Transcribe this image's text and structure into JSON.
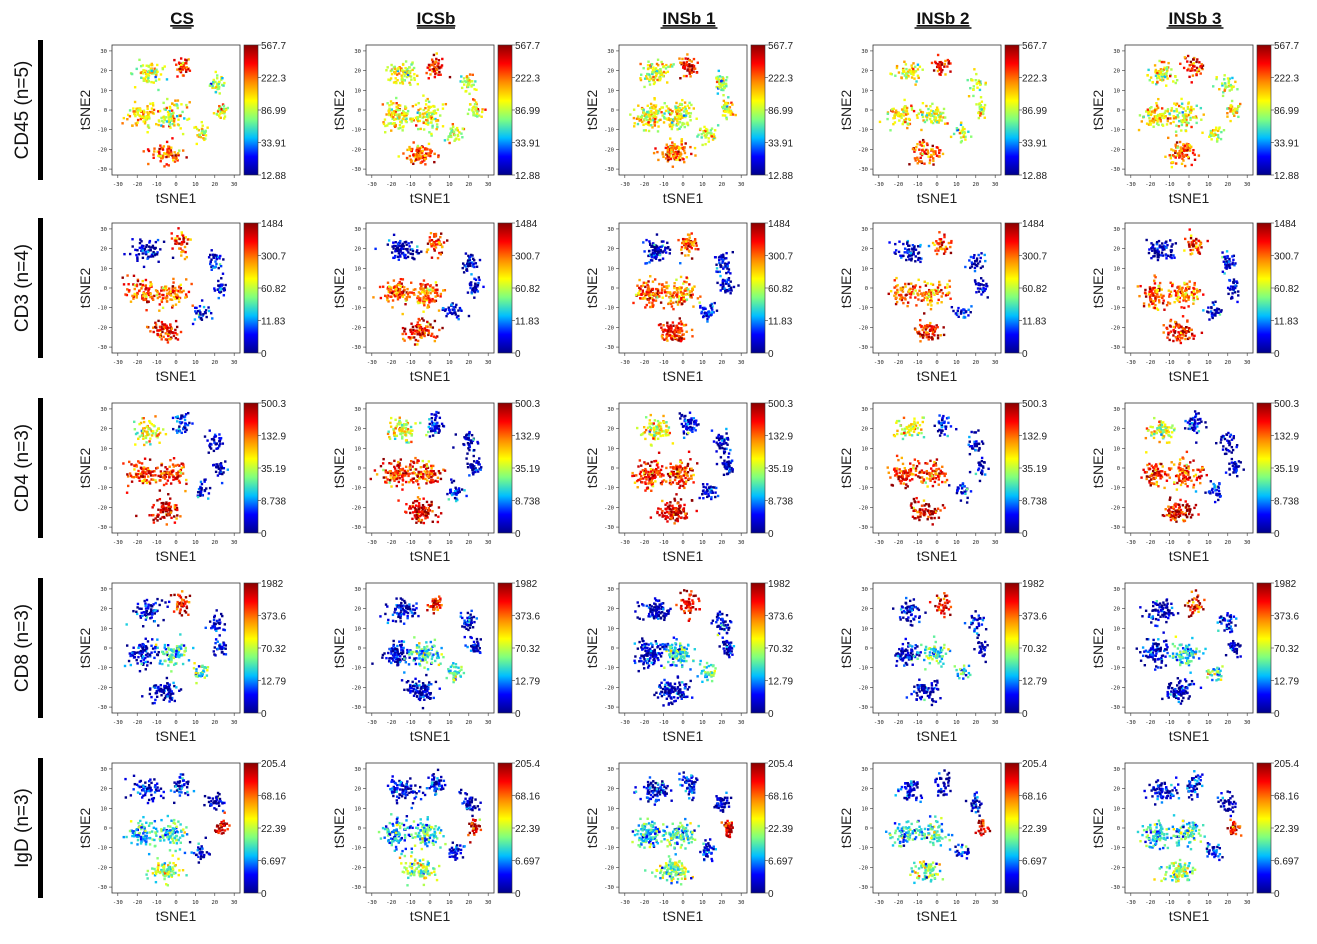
{
  "figure": {
    "conditions": [
      "CS",
      "ICSb",
      "INSb 1",
      "INSb 2",
      "INSb 3"
    ],
    "markers": [
      {
        "label": "CD45 (n=5)",
        "scale": [
          "567.7",
          "222.3",
          "86.99",
          "33.91",
          "12.88"
        ]
      },
      {
        "label": "CD3 (n=4)",
        "scale": [
          "1484",
          "300.7",
          "60.82",
          "11.83",
          "0"
        ]
      },
      {
        "label": "CD4 (n=3)",
        "scale": [
          "500.3",
          "132.9",
          "35.19",
          "8.738",
          "0"
        ]
      },
      {
        "label": "CD8 (n=3)",
        "scale": [
          "1982",
          "373.6",
          "70.32",
          "12.79",
          "0"
        ]
      },
      {
        "label": "IgD  (n=3)",
        "scale": [
          "205.4",
          "68.16",
          "22.39",
          "6.697",
          "0"
        ]
      }
    ],
    "x_axis_label": "tSNE1",
    "y_axis_label": "tSNE2",
    "x_ticks": [
      "-30",
      "-20",
      "-10",
      "0",
      "10",
      "20",
      "30"
    ],
    "y_ticks": [
      "30",
      "20",
      "10",
      "0",
      "-10",
      "-20",
      "-30"
    ]
  },
  "chart_data": {
    "type": "scatter",
    "description_kind": "tSNE heatmap scatter grid (rows = markers, columns = conditions)",
    "xlabel": "tSNE1",
    "ylabel": "tSNE2",
    "xlim": [
      -33,
      33
    ],
    "ylim": [
      -33,
      33
    ],
    "colormap": [
      "#00008b",
      "#0000ff",
      "#00bfff",
      "#7fff7f",
      "#ffff00",
      "#ff8c00",
      "#ff0000",
      "#8b0000"
    ],
    "clusters": [
      {
        "id": "top-left",
        "x": -14,
        "y": 19
      },
      {
        "id": "top-mid",
        "x": 3,
        "y": 22
      },
      {
        "id": "right-upper",
        "x": 20,
        "y": 13
      },
      {
        "id": "right-mid",
        "x": 23,
        "y": 0
      },
      {
        "id": "right-lower",
        "x": 13,
        "y": -12
      },
      {
        "id": "left-mid",
        "x": -17,
        "y": -3
      },
      {
        "id": "center",
        "x": -2,
        "y": -3
      },
      {
        "id": "bottom",
        "x": -5,
        "y": -22
      }
    ],
    "panels_intensity_by_marker": {
      "CD45": {
        "top-left": 0.55,
        "top-mid": 0.85,
        "right-upper": 0.5,
        "right-mid": 0.55,
        "right-lower": 0.5,
        "left-mid": 0.6,
        "center": 0.55,
        "bottom": 0.75
      },
      "CD3": {
        "top-left": 0.05,
        "top-mid": 0.8,
        "right-upper": 0.1,
        "right-mid": 0.05,
        "right-lower": 0.1,
        "left-mid": 0.78,
        "center": 0.72,
        "bottom": 0.85
      },
      "CD4": {
        "top-left": 0.55,
        "top-mid": 0.1,
        "right-upper": 0.05,
        "right-mid": 0.05,
        "right-lower": 0.1,
        "left-mid": 0.82,
        "center": 0.8,
        "bottom": 0.9
      },
      "CD8": {
        "top-left": 0.05,
        "top-mid": 0.85,
        "right-upper": 0.1,
        "right-mid": 0.05,
        "right-lower": 0.4,
        "left-mid": 0.08,
        "center": 0.35,
        "bottom": 0.05
      },
      "IgD": {
        "top-left": 0.1,
        "top-mid": 0.1,
        "right-upper": 0.05,
        "right-mid": 0.9,
        "right-lower": 0.1,
        "left-mid": 0.3,
        "center": 0.35,
        "bottom": 0.45
      }
    }
  }
}
